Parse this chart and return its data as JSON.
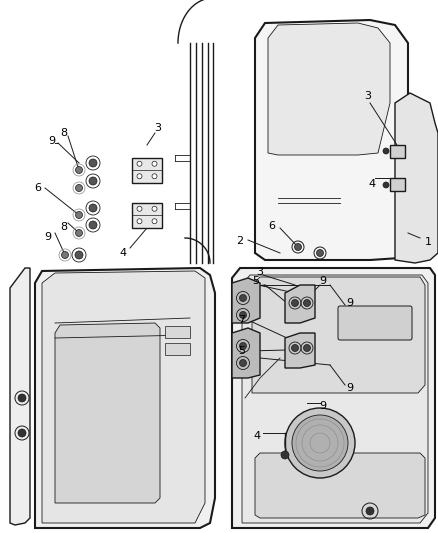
{
  "bg_color": "#ffffff",
  "line_color": "#1a1a1a",
  "gray_color": "#888888",
  "light_gray": "#cccccc",
  "fill_light": "#f2f2f2",
  "fill_mid": "#e0e0e0",
  "fill_dark": "#c8c8c8",
  "figsize": [
    4.38,
    5.33
  ],
  "dpi": 100,
  "label_fontsize": 8,
  "label_color": "#000000"
}
